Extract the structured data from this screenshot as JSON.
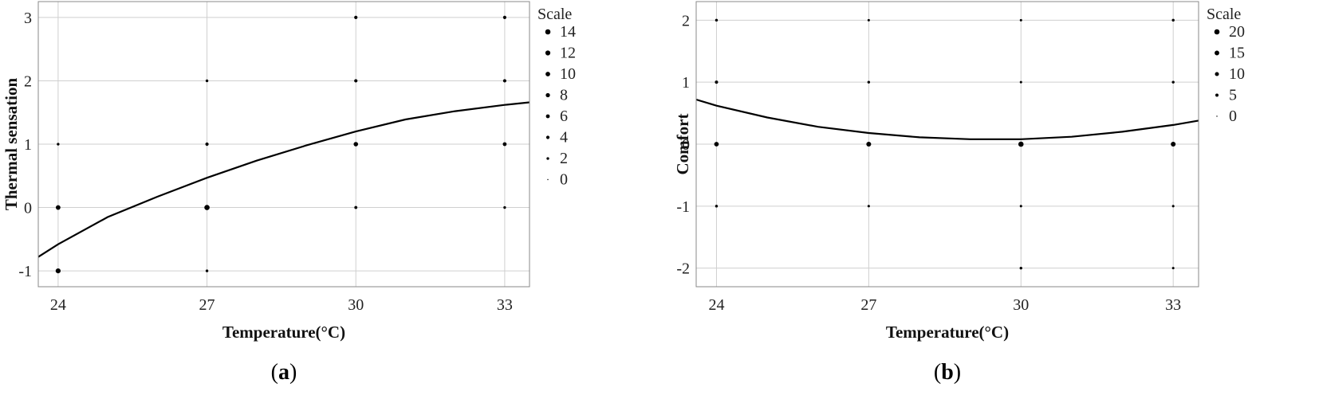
{
  "chart_data": [
    {
      "type": "scatter",
      "panel_label": {
        "open": "(",
        "letter": "a",
        "close": ")"
      },
      "xlabel": "Temperature(°C)",
      "ylabel": "Thermal sensation",
      "xlim": [
        23.6,
        33.5
      ],
      "ylim": [
        -1.25,
        3.25
      ],
      "xticks": [
        24,
        27,
        30,
        33
      ],
      "yticks": [
        -1,
        0,
        1,
        2,
        3
      ],
      "grid": true,
      "legend": {
        "title": "Scale",
        "placement": "right",
        "entries": [
          14,
          12,
          10,
          8,
          6,
          4,
          2,
          0
        ]
      },
      "points": [
        {
          "x": 24,
          "y": -1,
          "size": 12
        },
        {
          "x": 24,
          "y": 0,
          "size": 10
        },
        {
          "x": 24,
          "y": 1,
          "size": 2
        },
        {
          "x": 27,
          "y": -1,
          "size": 2
        },
        {
          "x": 27,
          "y": 0,
          "size": 14
        },
        {
          "x": 27,
          "y": 1,
          "size": 4
        },
        {
          "x": 27,
          "y": 2,
          "size": 2
        },
        {
          "x": 30,
          "y": 0,
          "size": 3
        },
        {
          "x": 30,
          "y": 1,
          "size": 9
        },
        {
          "x": 30,
          "y": 2,
          "size": 4
        },
        {
          "x": 30,
          "y": 3,
          "size": 4
        },
        {
          "x": 33,
          "y": 0,
          "size": 2
        },
        {
          "x": 33,
          "y": 1,
          "size": 6
        },
        {
          "x": 33,
          "y": 2,
          "size": 4
        },
        {
          "x": 33,
          "y": 3,
          "size": 4
        }
      ],
      "curve": [
        {
          "x": 23.6,
          "y": -0.78
        },
        {
          "x": 24,
          "y": -0.58
        },
        {
          "x": 25,
          "y": -0.15
        },
        {
          "x": 26,
          "y": 0.17
        },
        {
          "x": 27,
          "y": 0.47
        },
        {
          "x": 28,
          "y": 0.74
        },
        {
          "x": 29,
          "y": 0.98
        },
        {
          "x": 30,
          "y": 1.2
        },
        {
          "x": 31,
          "y": 1.39
        },
        {
          "x": 32,
          "y": 1.52
        },
        {
          "x": 33,
          "y": 1.62
        },
        {
          "x": 33.5,
          "y": 1.66
        }
      ]
    },
    {
      "type": "scatter",
      "panel_label": {
        "open": "(",
        "letter": "b",
        "close": ")"
      },
      "xlabel": "Temperature(°C)",
      "ylabel": "Comfort",
      "xlim": [
        23.6,
        33.5
      ],
      "ylim": [
        -2.3,
        2.3
      ],
      "xticks": [
        24,
        27,
        30,
        33
      ],
      "yticks": [
        -2,
        -1,
        0,
        1,
        2
      ],
      "grid": true,
      "legend": {
        "title": "Scale",
        "placement": "right",
        "entries": [
          20,
          15,
          10,
          5,
          0
        ]
      },
      "points": [
        {
          "x": 24,
          "y": -1,
          "size": 3
        },
        {
          "x": 24,
          "y": 0,
          "size": 14
        },
        {
          "x": 24,
          "y": 1,
          "size": 5
        },
        {
          "x": 24,
          "y": 2,
          "size": 3
        },
        {
          "x": 27,
          "y": -1,
          "size": 2
        },
        {
          "x": 27,
          "y": 0,
          "size": 16
        },
        {
          "x": 27,
          "y": 1,
          "size": 3
        },
        {
          "x": 27,
          "y": 2,
          "size": 2
        },
        {
          "x": 30,
          "y": -2,
          "size": 3
        },
        {
          "x": 30,
          "y": -1,
          "size": 2
        },
        {
          "x": 30,
          "y": 0,
          "size": 20
        },
        {
          "x": 30,
          "y": 1,
          "size": 2
        },
        {
          "x": 30,
          "y": 2,
          "size": 2
        },
        {
          "x": 33,
          "y": -2,
          "size": 2
        },
        {
          "x": 33,
          "y": -1,
          "size": 2
        },
        {
          "x": 33,
          "y": 0,
          "size": 16
        },
        {
          "x": 33,
          "y": 1,
          "size": 3
        },
        {
          "x": 33,
          "y": 2,
          "size": 3
        }
      ],
      "curve": [
        {
          "x": 23.6,
          "y": 0.72
        },
        {
          "x": 24,
          "y": 0.62
        },
        {
          "x": 25,
          "y": 0.43
        },
        {
          "x": 26,
          "y": 0.28
        },
        {
          "x": 27,
          "y": 0.18
        },
        {
          "x": 28,
          "y": 0.11
        },
        {
          "x": 29,
          "y": 0.08
        },
        {
          "x": 30,
          "y": 0.08
        },
        {
          "x": 31,
          "y": 0.12
        },
        {
          "x": 32,
          "y": 0.2
        },
        {
          "x": 33,
          "y": 0.31
        },
        {
          "x": 33.5,
          "y": 0.38
        }
      ]
    }
  ]
}
